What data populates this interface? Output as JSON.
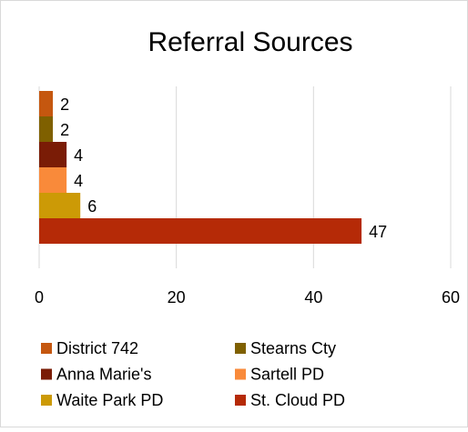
{
  "chart_data": {
    "type": "bar",
    "orientation": "horizontal",
    "title": "Referral Sources",
    "series": [
      {
        "name": "District 742",
        "color": "#c5570f",
        "values": [
          2
        ]
      },
      {
        "name": "Stearns Cty",
        "color": "#7f6000",
        "values": [
          2
        ]
      },
      {
        "name": "Anna Marie's",
        "color": "#7a1c06",
        "values": [
          4
        ]
      },
      {
        "name": "Sartell PD",
        "color": "#f98a3a",
        "values": [
          4
        ]
      },
      {
        "name": "Waite Park PD",
        "color": "#cc9a06",
        "values": [
          6
        ]
      },
      {
        "name": "St. Cloud PD",
        "color": "#b52a07",
        "values": [
          47
        ]
      }
    ],
    "xlim": [
      0,
      60
    ],
    "xticks": [
      0,
      20,
      40,
      60
    ],
    "grid": true,
    "legend": "bottom"
  }
}
